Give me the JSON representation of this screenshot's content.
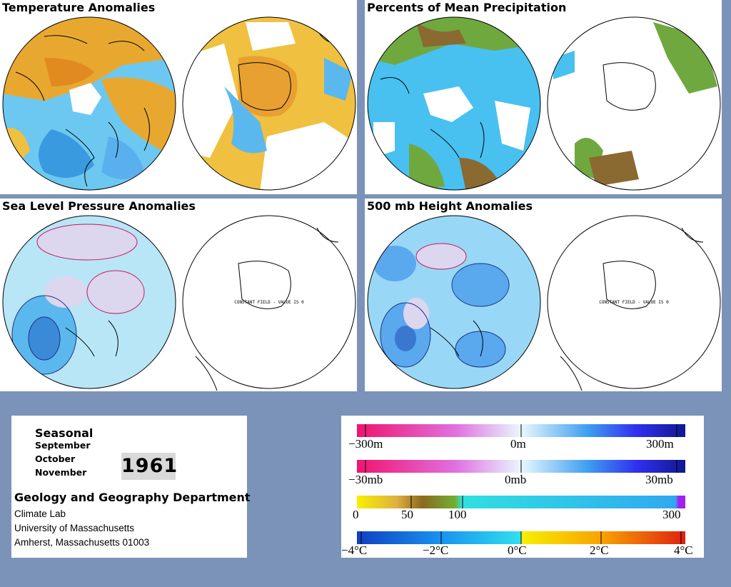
{
  "panels": [
    {
      "id": "temp",
      "title": "Temperature Anomalies",
      "map_type": "temperature"
    },
    {
      "id": "precip",
      "title": "Percents of Mean Precipitation",
      "map_type": "precipitation"
    },
    {
      "id": "slp",
      "title": "Sea Level Pressure Anomalies",
      "map_type": "pressure"
    },
    {
      "id": "h500",
      "title": "500 mb Height Anomalies",
      "map_type": "height"
    }
  ],
  "constant_field_note": "CONSTANT FIELD - VALUE IS 0",
  "info": {
    "season": "Seasonal",
    "months": [
      "September",
      "October",
      "November"
    ],
    "year": "1961",
    "department": "Geology and Geography Department",
    "address": [
      "Climate Lab",
      "University of Massachusetts",
      "Amherst, Massachusetts 01003"
    ]
  },
  "colorbars": [
    {
      "name": "height",
      "labels": [
        "−300m",
        "0m",
        "300m"
      ]
    },
    {
      "name": "pressure",
      "labels": [
        "−30mb",
        "0mb",
        "30mb"
      ]
    },
    {
      "name": "precipitation",
      "labels": [
        "0",
        "50",
        "100",
        "300"
      ]
    },
    {
      "name": "temperature",
      "labels": [
        "−4°C",
        "−2°C",
        "0°C",
        "2°C",
        "4°C"
      ]
    }
  ],
  "colors": {
    "background": "#7b93b8",
    "warm": "#e8a020",
    "cool": "#40b8f0",
    "precip_dry": "#8a6a20",
    "precip_mid": "#78b030",
    "contour_pos": "#c01860",
    "contour_neg": "#203080"
  }
}
